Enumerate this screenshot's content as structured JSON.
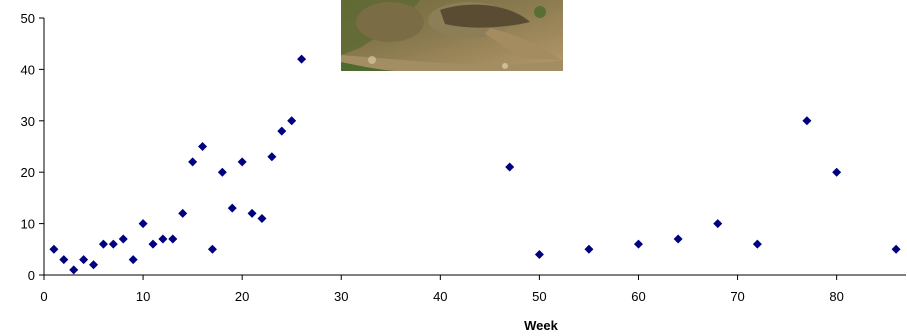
{
  "chart_data": {
    "type": "scatter",
    "title": "",
    "xlabel": "Week",
    "ylabel": "",
    "xlim": [
      0,
      87
    ],
    "ylim": [
      0,
      50
    ],
    "x_ticks": [
      0,
      10,
      20,
      30,
      40,
      50,
      60,
      70,
      80
    ],
    "y_ticks": [
      0,
      10,
      20,
      30,
      40,
      50
    ],
    "grid": false,
    "legend": "none",
    "marker": "diamond",
    "marker_color": "#000080",
    "series": [
      {
        "x": [
          1,
          2,
          3,
          4,
          5,
          6,
          7,
          8,
          9,
          10,
          11,
          12,
          13,
          14,
          15,
          16,
          17,
          18,
          19,
          20,
          21,
          22,
          23,
          24,
          25,
          26,
          47,
          50,
          55,
          60,
          64,
          68,
          72,
          77,
          80,
          86
        ],
        "y": [
          5,
          3,
          1,
          3,
          2,
          6,
          6,
          7,
          3,
          10,
          6,
          7,
          7,
          12,
          22,
          25,
          5,
          20,
          13,
          22,
          12,
          11,
          23,
          28,
          30,
          42,
          21,
          4,
          5,
          6,
          7,
          10,
          6,
          30,
          20,
          5
        ]
      }
    ]
  },
  "photo": {
    "subject": "small mammal in a burrow",
    "colors": [
      "#6e6a3c",
      "#b09060",
      "#3f5a2a"
    ]
  }
}
